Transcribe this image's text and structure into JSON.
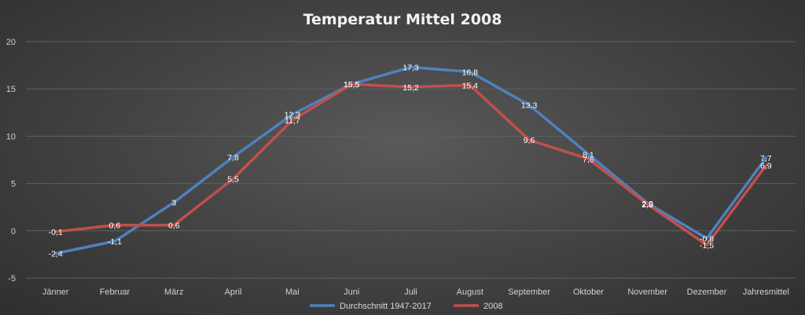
{
  "chart_data": {
    "type": "line",
    "title": "Temperatur Mittel 2008",
    "xlabel": "",
    "ylabel": "",
    "categories": [
      "Jänner",
      "Februar",
      "März",
      "April",
      "Mai",
      "Juni",
      "Juli",
      "August",
      "September",
      "Oktober",
      "November",
      "Dezember",
      "Jahresmittel"
    ],
    "ylim": [
      -5,
      20
    ],
    "yticks": [
      "-5",
      "0",
      "5",
      "10",
      "15",
      "20"
    ],
    "grid": true,
    "legend": "bottom",
    "series": [
      {
        "name": "Durchschnitt 1947-2017",
        "color": "#4f81bd",
        "values": [
          -2.4,
          -1.1,
          3,
          7.8,
          12.3,
          15.5,
          17.3,
          16.8,
          13.3,
          8.1,
          2.9,
          -0.8,
          7.7
        ],
        "labels": [
          "-2,4",
          "-1,1",
          "3",
          "7,8",
          "12,3",
          "15,5",
          "17,3",
          "16,8",
          "13,3",
          "8,1",
          "2,9",
          "-0,8",
          "7,7"
        ]
      },
      {
        "name": "2008",
        "color": "#c0504d",
        "values": [
          -0.1,
          0.6,
          0.6,
          5.5,
          11.7,
          15.5,
          15.2,
          15.4,
          9.6,
          7.6,
          2.8,
          -1.5,
          6.9
        ],
        "labels": [
          "-0,1",
          "0,6",
          "0,6",
          "5,5",
          "11,7",
          "15,5",
          "15,2",
          "15,4",
          "9,6",
          "7,6",
          "2,8",
          "-1,5",
          "6,9"
        ]
      }
    ]
  }
}
